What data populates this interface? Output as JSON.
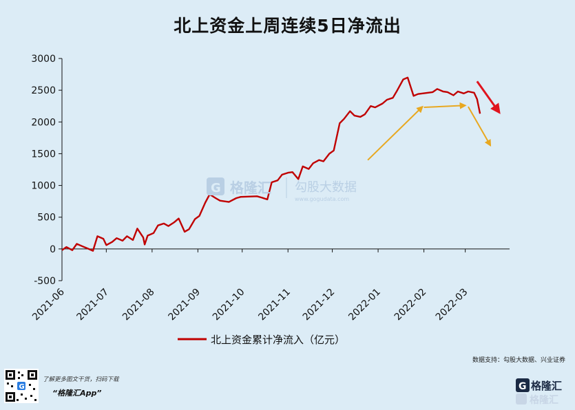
{
  "title": "北上资金上周连续5日净流出",
  "source": "数据支持：勾股大数据、兴业证券",
  "footer": {
    "line1": "了解更多图文干货，扫码下载",
    "line2": "“格隆汇App”"
  },
  "brand": {
    "name": "格隆汇"
  },
  "watermark": {
    "name": "格隆汇",
    "sub": "勾股大数据",
    "url": "www.gogudata.com"
  },
  "colors": {
    "line": "#c00000",
    "arrow_gold": "#e8a820",
    "arrow_red": "#e0141e",
    "background": "#dcecf6"
  },
  "chart_data": {
    "type": "line",
    "ylim": [
      -500,
      3000
    ],
    "yticks": [
      "-500",
      "0",
      "500",
      "1000",
      "1500",
      "2000",
      "2500",
      "3000"
    ],
    "xticks": [
      "2021-06",
      "2021-07",
      "2021-08",
      "2021-09",
      "2021-10",
      "2021-11",
      "2021-12",
      "2022-01",
      "2022-02",
      "2022-03"
    ],
    "legend": "北上资金累计净流入（亿元）",
    "legend_position": "bottom",
    "series": [
      {
        "name": "北上资金累计净流入（亿元）",
        "x": [
          "2021-06-01",
          "2021-06-04",
          "2021-06-08",
          "2021-06-11",
          "2021-06-15",
          "2021-06-18",
          "2021-06-22",
          "2021-06-25",
          "2021-06-29",
          "2021-07-01",
          "2021-07-05",
          "2021-07-08",
          "2021-07-12",
          "2021-07-15",
          "2021-07-19",
          "2021-07-22",
          "2021-07-26",
          "2021-07-27",
          "2021-07-29",
          "2021-08-02",
          "2021-08-05",
          "2021-08-09",
          "2021-08-12",
          "2021-08-16",
          "2021-08-19",
          "2021-08-23",
          "2021-08-26",
          "2021-08-30",
          "2021-09-02",
          "2021-09-06",
          "2021-09-09",
          "2021-09-13",
          "2021-09-16",
          "2021-09-22",
          "2021-09-27",
          "2021-09-30",
          "2021-10-11",
          "2021-10-14",
          "2021-10-18",
          "2021-10-21",
          "2021-10-25",
          "2021-10-28",
          "2021-11-01",
          "2021-11-04",
          "2021-11-08",
          "2021-11-11",
          "2021-11-15",
          "2021-11-18",
          "2021-11-22",
          "2021-11-25",
          "2021-11-29",
          "2021-12-02",
          "2021-12-06",
          "2021-12-09",
          "2021-12-13",
          "2021-12-16",
          "2021-12-20",
          "2021-12-23",
          "2021-12-27",
          "2021-12-30",
          "2022-01-04",
          "2022-01-07",
          "2022-01-11",
          "2022-01-14",
          "2022-01-18",
          "2022-01-21",
          "2022-01-25",
          "2022-01-28",
          "2022-02-07",
          "2022-02-10",
          "2022-02-14",
          "2022-02-17",
          "2022-02-21",
          "2022-02-24",
          "2022-02-28",
          "2022-03-03",
          "2022-03-07",
          "2022-03-09",
          "2022-03-11"
        ],
        "values": [
          -20,
          30,
          -20,
          80,
          40,
          10,
          -30,
          200,
          160,
          60,
          110,
          170,
          130,
          200,
          140,
          320,
          180,
          70,
          210,
          250,
          370,
          400,
          360,
          420,
          480,
          270,
          310,
          470,
          520,
          730,
          860,
          800,
          760,
          740,
          800,
          820,
          830,
          810,
          780,
          1050,
          1080,
          1170,
          1200,
          1210,
          1100,
          1300,
          1260,
          1350,
          1400,
          1380,
          1500,
          1550,
          1980,
          2050,
          2170,
          2100,
          2080,
          2120,
          2250,
          2230,
          2290,
          2350,
          2380,
          2500,
          2670,
          2700,
          2410,
          2440,
          2470,
          2520,
          2480,
          2470,
          2420,
          2480,
          2450,
          2480,
          2460,
          2360,
          2130
        ]
      }
    ],
    "annotations": [
      {
        "type": "arrow",
        "color": "gold",
        "from": [
          "2021-12-25",
          1400
        ],
        "to": [
          "2022-01-31",
          2240
        ]
      },
      {
        "type": "arrow",
        "color": "gold",
        "from": [
          "2022-02-01",
          2230
        ],
        "to": [
          "2022-03-01",
          2260
        ]
      },
      {
        "type": "arrow",
        "color": "gold",
        "from": [
          "2022-03-03",
          2240
        ],
        "to": [
          "2022-03-18",
          1630
        ]
      },
      {
        "type": "arrow",
        "color": "red",
        "from": [
          "2022-03-09",
          2640
        ],
        "to": [
          "2022-03-24",
          2150
        ]
      }
    ]
  }
}
